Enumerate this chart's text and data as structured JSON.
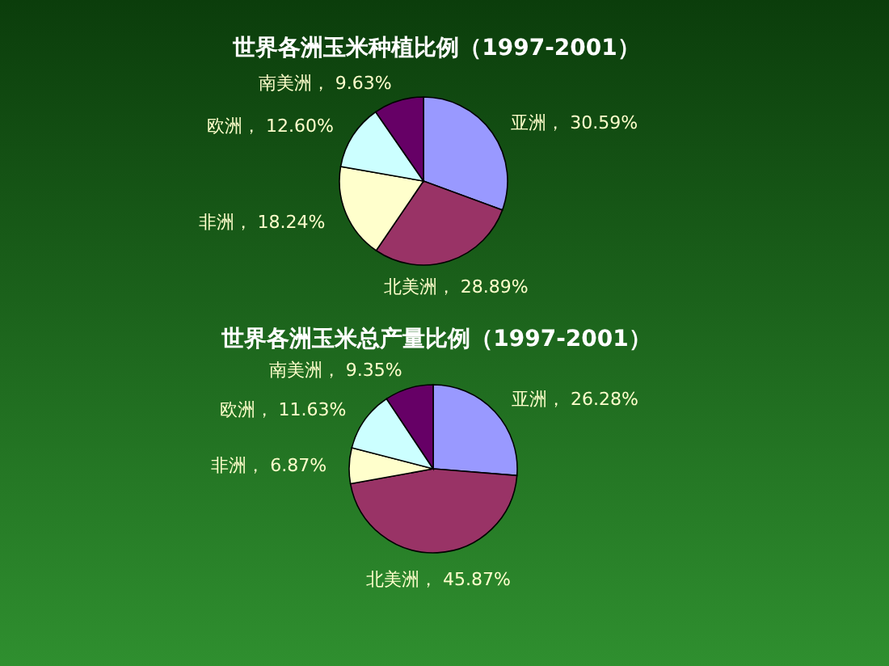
{
  "chart_data": [
    {
      "type": "pie",
      "title": "世界各洲玉米种植比例（1997-2001）",
      "categories": [
        "亚洲",
        "北美洲",
        "非洲",
        "欧洲",
        "南美洲"
      ],
      "values": [
        30.59,
        28.89,
        18.24,
        12.6,
        9.63
      ],
      "value_labels": [
        "30.59%",
        "28.89%",
        "18.24%",
        "12.60%",
        "9.63%"
      ],
      "colors": [
        "#9999ff",
        "#993366",
        "#ffffcc",
        "#ccffff",
        "#660066"
      ]
    },
    {
      "type": "pie",
      "title": "世界各洲玉米总产量比例（1997-2001）",
      "categories": [
        "亚洲",
        "北美洲",
        "非洲",
        "欧洲",
        "南美洲"
      ],
      "values": [
        26.28,
        45.87,
        6.87,
        11.63,
        9.35
      ],
      "value_labels": [
        "26.28%",
        "45.87%",
        "6.87%",
        "11.63%",
        "9.35%"
      ],
      "colors": [
        "#9999ff",
        "#993366",
        "#ffffcc",
        "#ccffff",
        "#660066"
      ]
    }
  ]
}
